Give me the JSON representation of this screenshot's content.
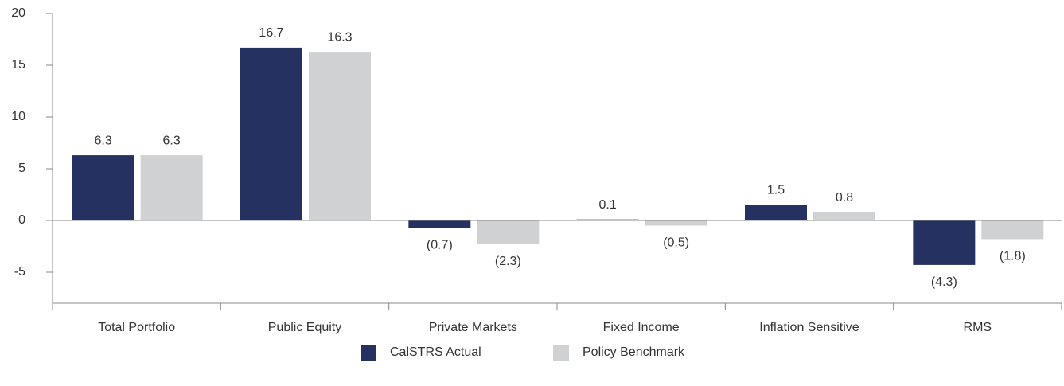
{
  "chart_data": {
    "type": "bar",
    "categories": [
      "Total Portfolio",
      "Public Equity",
      "Private Markets",
      "Fixed Income",
      "Inflation Sensitive",
      "RMS"
    ],
    "series": [
      {
        "name": "CalSTRS Actual",
        "color": "#253161",
        "values": [
          6.3,
          16.7,
          -0.7,
          0.1,
          1.5,
          -4.3
        ],
        "value_labels": [
          "6.3",
          "16.7",
          "(0.7)",
          "0.1",
          "1.5",
          "(4.3)"
        ]
      },
      {
        "name": "Policy Benchmark",
        "color": "#d0d1d3",
        "values": [
          6.3,
          16.3,
          -2.3,
          -0.5,
          0.8,
          -1.8
        ],
        "value_labels": [
          "6.3",
          "16.3",
          "(2.3)",
          "(0.5)",
          "0.8",
          "(1.8)"
        ]
      }
    ],
    "ylim": [
      -8,
      20
    ],
    "yticks": [
      -5,
      0,
      5,
      10,
      15,
      20
    ],
    "grid": false,
    "legend": "bottom"
  }
}
